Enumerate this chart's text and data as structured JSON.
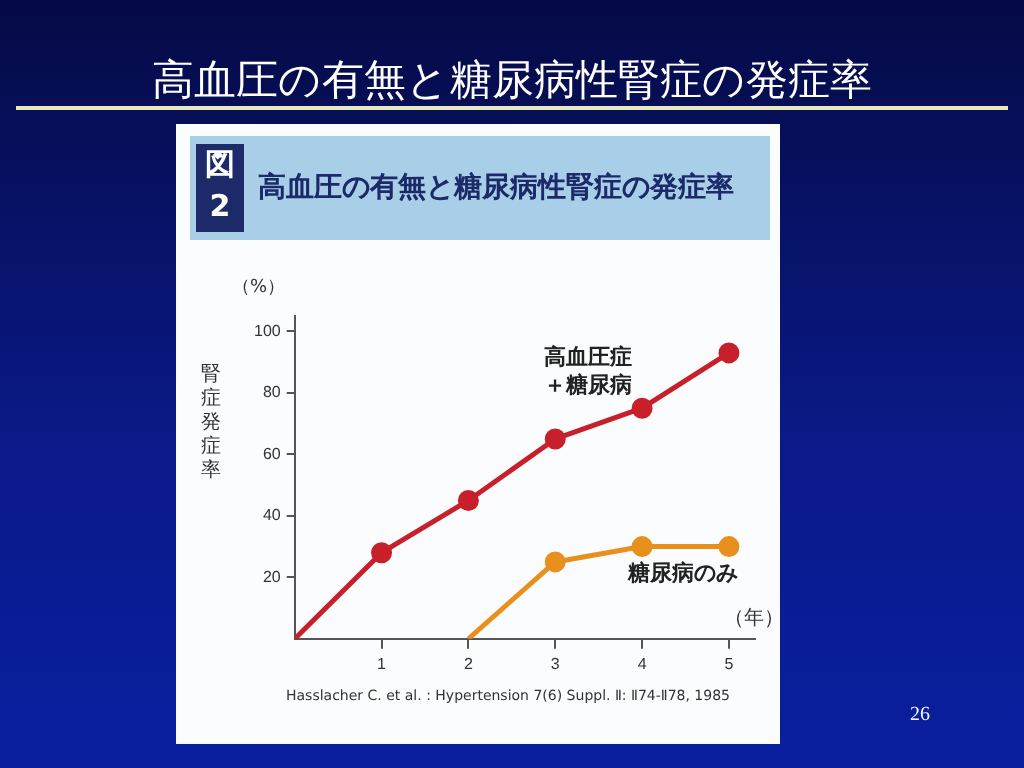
{
  "chart_data": {
    "type": "line",
    "title": "高血圧の有無と糖尿病性腎症の発症率",
    "subtitle": "高血圧の有無と糖尿病性腎症の発症率",
    "xlabel": "（年）",
    "ylabel": "腎症発症率",
    "annotations": [
      "図\n2",
      "（%）",
      "Hasslacher C. et al. : Hypertension 7(6) Suppl. Ⅱ: Ⅱ74-Ⅱ78, 1985",
      "26"
    ],
    "series": [
      {
        "name": "高血圧症＋糖尿病",
        "color": "#c8202a",
        "x": [
          0,
          1,
          2,
          3,
          4,
          5
        ],
        "values": [
          0,
          28,
          45,
          65,
          75,
          93
        ]
      },
      {
        "name": "糖尿病のみ",
        "color": "#e8901e",
        "x": [
          2,
          3,
          4,
          5
        ],
        "values": [
          0,
          25,
          30,
          30
        ]
      }
    ],
    "xlim": [
      0,
      5.3
    ],
    "ylim": [
      0,
      105
    ],
    "xticks": [
      1,
      2,
      3,
      4,
      5
    ],
    "yticks": [
      20,
      40,
      60,
      80,
      100
    ],
    "marker": "circle",
    "line_style": "solid",
    "grid": false,
    "legend": false
  }
}
